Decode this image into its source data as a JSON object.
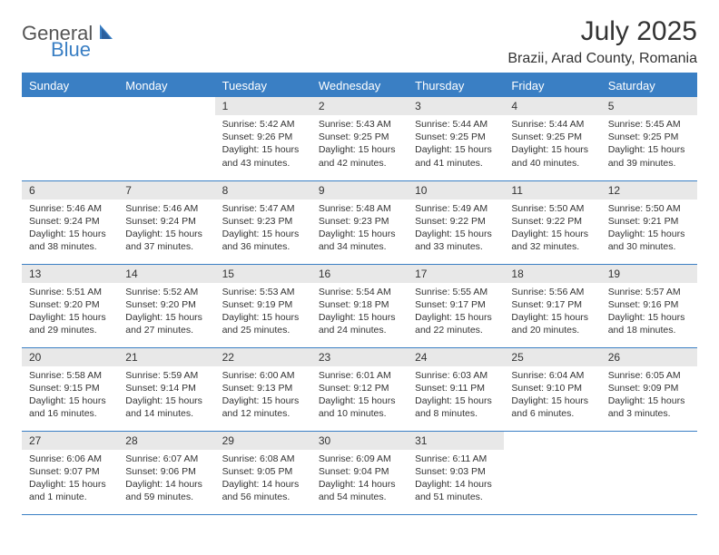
{
  "logo": {
    "text1": "General",
    "text2": "Blue"
  },
  "title": "July 2025",
  "location": "Brazii, Arad County, Romania",
  "colors": {
    "brand_blue": "#3a7fc4",
    "daynum_bg": "#e8e8e8",
    "text": "#333333",
    "bg": "#ffffff"
  },
  "weekdays": [
    "Sunday",
    "Monday",
    "Tuesday",
    "Wednesday",
    "Thursday",
    "Friday",
    "Saturday"
  ],
  "weeks": [
    [
      null,
      null,
      {
        "n": "1",
        "sr": "5:42 AM",
        "ss": "9:26 PM",
        "dl": "15 hours and 43 minutes."
      },
      {
        "n": "2",
        "sr": "5:43 AM",
        "ss": "9:25 PM",
        "dl": "15 hours and 42 minutes."
      },
      {
        "n": "3",
        "sr": "5:44 AM",
        "ss": "9:25 PM",
        "dl": "15 hours and 41 minutes."
      },
      {
        "n": "4",
        "sr": "5:44 AM",
        "ss": "9:25 PM",
        "dl": "15 hours and 40 minutes."
      },
      {
        "n": "5",
        "sr": "5:45 AM",
        "ss": "9:25 PM",
        "dl": "15 hours and 39 minutes."
      }
    ],
    [
      {
        "n": "6",
        "sr": "5:46 AM",
        "ss": "9:24 PM",
        "dl": "15 hours and 38 minutes."
      },
      {
        "n": "7",
        "sr": "5:46 AM",
        "ss": "9:24 PM",
        "dl": "15 hours and 37 minutes."
      },
      {
        "n": "8",
        "sr": "5:47 AM",
        "ss": "9:23 PM",
        "dl": "15 hours and 36 minutes."
      },
      {
        "n": "9",
        "sr": "5:48 AM",
        "ss": "9:23 PM",
        "dl": "15 hours and 34 minutes."
      },
      {
        "n": "10",
        "sr": "5:49 AM",
        "ss": "9:22 PM",
        "dl": "15 hours and 33 minutes."
      },
      {
        "n": "11",
        "sr": "5:50 AM",
        "ss": "9:22 PM",
        "dl": "15 hours and 32 minutes."
      },
      {
        "n": "12",
        "sr": "5:50 AM",
        "ss": "9:21 PM",
        "dl": "15 hours and 30 minutes."
      }
    ],
    [
      {
        "n": "13",
        "sr": "5:51 AM",
        "ss": "9:20 PM",
        "dl": "15 hours and 29 minutes."
      },
      {
        "n": "14",
        "sr": "5:52 AM",
        "ss": "9:20 PM",
        "dl": "15 hours and 27 minutes."
      },
      {
        "n": "15",
        "sr": "5:53 AM",
        "ss": "9:19 PM",
        "dl": "15 hours and 25 minutes."
      },
      {
        "n": "16",
        "sr": "5:54 AM",
        "ss": "9:18 PM",
        "dl": "15 hours and 24 minutes."
      },
      {
        "n": "17",
        "sr": "5:55 AM",
        "ss": "9:17 PM",
        "dl": "15 hours and 22 minutes."
      },
      {
        "n": "18",
        "sr": "5:56 AM",
        "ss": "9:17 PM",
        "dl": "15 hours and 20 minutes."
      },
      {
        "n": "19",
        "sr": "5:57 AM",
        "ss": "9:16 PM",
        "dl": "15 hours and 18 minutes."
      }
    ],
    [
      {
        "n": "20",
        "sr": "5:58 AM",
        "ss": "9:15 PM",
        "dl": "15 hours and 16 minutes."
      },
      {
        "n": "21",
        "sr": "5:59 AM",
        "ss": "9:14 PM",
        "dl": "15 hours and 14 minutes."
      },
      {
        "n": "22",
        "sr": "6:00 AM",
        "ss": "9:13 PM",
        "dl": "15 hours and 12 minutes."
      },
      {
        "n": "23",
        "sr": "6:01 AM",
        "ss": "9:12 PM",
        "dl": "15 hours and 10 minutes."
      },
      {
        "n": "24",
        "sr": "6:03 AM",
        "ss": "9:11 PM",
        "dl": "15 hours and 8 minutes."
      },
      {
        "n": "25",
        "sr": "6:04 AM",
        "ss": "9:10 PM",
        "dl": "15 hours and 6 minutes."
      },
      {
        "n": "26",
        "sr": "6:05 AM",
        "ss": "9:09 PM",
        "dl": "15 hours and 3 minutes."
      }
    ],
    [
      {
        "n": "27",
        "sr": "6:06 AM",
        "ss": "9:07 PM",
        "dl": "15 hours and 1 minute."
      },
      {
        "n": "28",
        "sr": "6:07 AM",
        "ss": "9:06 PM",
        "dl": "14 hours and 59 minutes."
      },
      {
        "n": "29",
        "sr": "6:08 AM",
        "ss": "9:05 PM",
        "dl": "14 hours and 56 minutes."
      },
      {
        "n": "30",
        "sr": "6:09 AM",
        "ss": "9:04 PM",
        "dl": "14 hours and 54 minutes."
      },
      {
        "n": "31",
        "sr": "6:11 AM",
        "ss": "9:03 PM",
        "dl": "14 hours and 51 minutes."
      },
      null,
      null
    ]
  ],
  "labels": {
    "sunrise": "Sunrise: ",
    "sunset": "Sunset: ",
    "daylight": "Daylight: "
  }
}
